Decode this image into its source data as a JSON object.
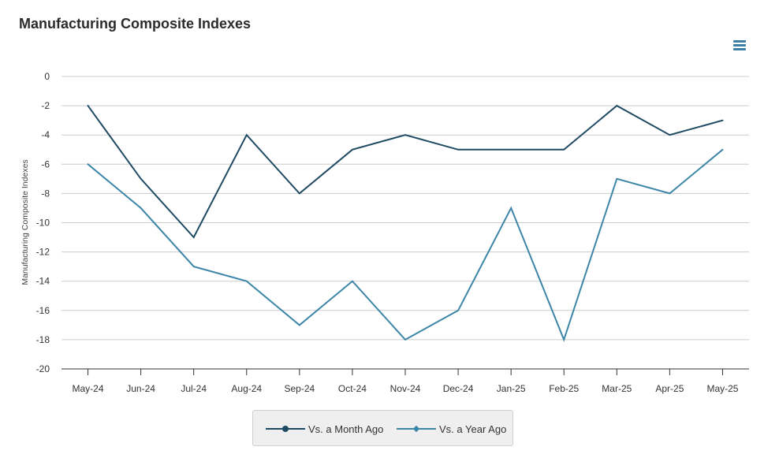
{
  "header": {
    "title": "Manufacturing Composite Indexes",
    "menu_icon": "hamburger-menu-icon"
  },
  "colors": {
    "series_month": "#1f4a63",
    "series_year": "#3d86a8",
    "grid": "#cccccc",
    "axis": "#333333",
    "menu": "#3d7ea6"
  },
  "chart_data": {
    "type": "line",
    "title": "Manufacturing Composite Indexes",
    "xlabel": "",
    "ylabel": "Manufacturing Composite Indexes",
    "ylim": [
      -20,
      0
    ],
    "yticks": [
      0,
      -2,
      -4,
      -6,
      -8,
      -10,
      -12,
      -14,
      -16,
      -18,
      -20
    ],
    "grid": true,
    "legend_position": "bottom-center",
    "categories": [
      "May-24",
      "Jun-24",
      "Jul-24",
      "Aug-24",
      "Sep-24",
      "Oct-24",
      "Nov-24",
      "Dec-24",
      "Jan-25",
      "Feb-25",
      "Mar-25",
      "Apr-25",
      "May-25"
    ],
    "series": [
      {
        "name": "Vs. a Month Ago",
        "marker": "circle",
        "color": "#1f4a63",
        "values": [
          -2,
          -7,
          -11,
          -4,
          -8,
          -5,
          -4,
          -5,
          -5,
          -5,
          -2,
          -4,
          -3
        ]
      },
      {
        "name": "Vs. a Year Ago",
        "marker": "diamond",
        "color": "#3d86a8",
        "values": [
          -6,
          -9,
          -13,
          -14,
          -17,
          -14,
          -18,
          -16,
          -9,
          -18,
          -7,
          -8,
          -5
        ]
      }
    ]
  }
}
